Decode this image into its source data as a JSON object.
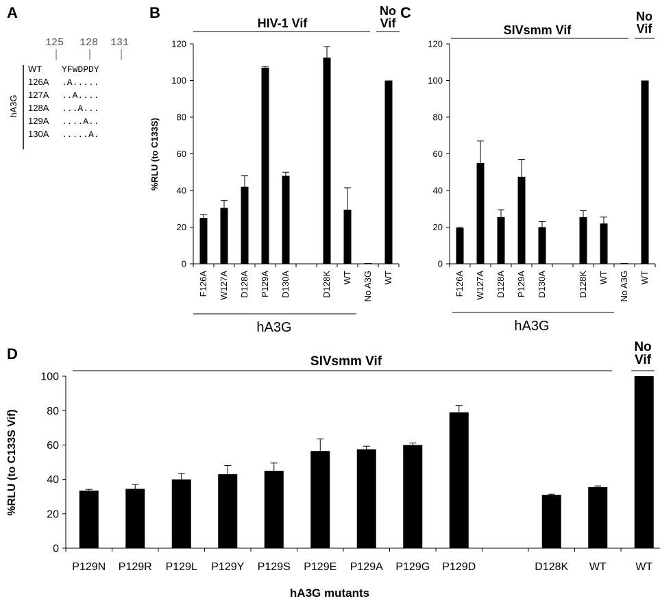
{
  "panel_labels": [
    "A",
    "B",
    "C",
    "D"
  ],
  "panelA": {
    "positions": [
      "125",
      "128",
      "131"
    ],
    "group_label": "hA3G",
    "rows": [
      {
        "name": "WT",
        "seq": "YFWDPDY"
      },
      {
        "name": "126A",
        "seq": ".A....."
      },
      {
        "name": "127A",
        "seq": "..A...."
      },
      {
        "name": "128A",
        "seq": "...A..."
      },
      {
        "name": "129A",
        "seq": "....A.."
      },
      {
        "name": "130A",
        "seq": ".....A."
      }
    ]
  },
  "chart_data": [
    {
      "panel": "B",
      "type": "bar",
      "ylabel": "%RLU (to C133S)",
      "ylim": [
        0,
        120
      ],
      "yticks": [
        "0",
        "20",
        "40",
        "60",
        "80",
        "100",
        "120"
      ],
      "categories": [
        "F126A",
        "W127A",
        "D128A",
        "P129A",
        "D130A",
        "",
        "D128K",
        "WT",
        "No A3G",
        "WT"
      ],
      "values": [
        25,
        30.5,
        42,
        107,
        48,
        null,
        112.5,
        29.5,
        0,
        100
      ],
      "errors": [
        2,
        4,
        6,
        0.8,
        2,
        null,
        6,
        12,
        0,
        0
      ],
      "group_label_top": "HIV-1 Vif",
      "novif_label": [
        "No",
        "Vif"
      ],
      "group_label_bottom": "hA3G"
    },
    {
      "panel": "C",
      "type": "bar",
      "ylabel": "",
      "ylim": [
        0,
        120
      ],
      "yticks": [
        "0",
        "20",
        "40",
        "60",
        "80",
        "100",
        "120"
      ],
      "categories": [
        "F126A",
        "W127A",
        "D128A",
        "P129A",
        "D130A",
        "",
        "D128K",
        "WT",
        "No A3G",
        "WT"
      ],
      "values": [
        19.5,
        55,
        25.5,
        47.5,
        20,
        null,
        25.5,
        22,
        0,
        100
      ],
      "errors": [
        0.5,
        12,
        4,
        9.5,
        3,
        null,
        3.5,
        3.5,
        0,
        0
      ],
      "group_label_top": "SIVsmm Vif",
      "novif_label": [
        "No",
        "Vif"
      ],
      "group_label_bottom": "hA3G"
    },
    {
      "panel": "D",
      "type": "bar",
      "ylabel": "%RLU (to C133S Vif)",
      "xlabel": "hA3G mutants",
      "ylim": [
        0,
        100
      ],
      "yticks": [
        "0",
        "20",
        "40",
        "60",
        "80",
        "100"
      ],
      "categories": [
        "P129N",
        "P129R",
        "P129L",
        "P129Y",
        "P129S",
        "P129E",
        "P129A",
        "P129G",
        "P129D",
        "",
        "D128K",
        "WT",
        "WT"
      ],
      "values": [
        33.5,
        34.5,
        40,
        43,
        45,
        56.5,
        57.5,
        60,
        79,
        null,
        31,
        35.5,
        100
      ],
      "errors": [
        0.7,
        2.5,
        3.5,
        5,
        4.5,
        7,
        1.8,
        1.2,
        4,
        null,
        0.4,
        0.7,
        0
      ],
      "group_label_top": "SIVsmm Vif",
      "novif_label": [
        "No",
        "Vif"
      ]
    }
  ]
}
